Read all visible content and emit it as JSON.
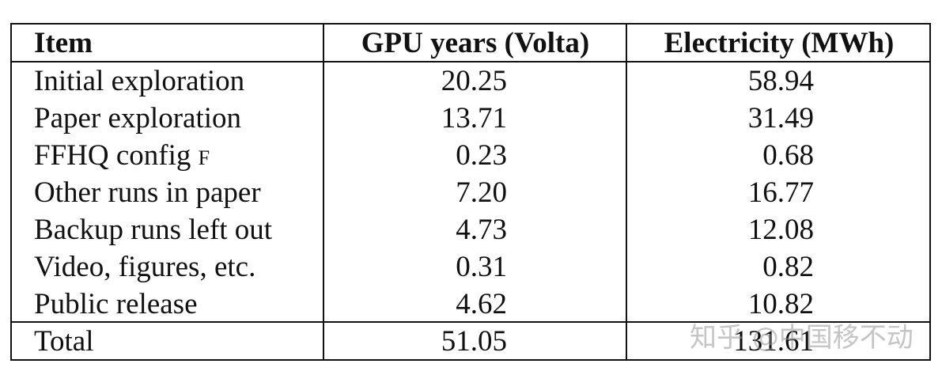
{
  "table": {
    "headers": [
      "Item",
      "GPU years (Volta)",
      "Electricity (MWh)"
    ],
    "rows": [
      {
        "item": "Initial exploration",
        "gpu": "20.25",
        "elec": "58.94"
      },
      {
        "item": "Paper exploration",
        "gpu": "13.71",
        "elec": "31.49"
      },
      {
        "item": "FFHQ config",
        "item_suffix": "F",
        "gpu": "0.23",
        "elec": "0.68"
      },
      {
        "item": "Other runs in paper",
        "gpu": "7.20",
        "elec": "16.77"
      },
      {
        "item": "Backup runs left out",
        "gpu": "4.73",
        "elec": "12.08"
      },
      {
        "item": "Video, figures, etc.",
        "gpu": "0.31",
        "elec": "0.82"
      },
      {
        "item": "Public release",
        "gpu": "4.62",
        "elec": "10.82"
      }
    ],
    "total": {
      "item": "Total",
      "gpu": "51.05",
      "elec": "131.61"
    }
  },
  "watermark": "知乎 @中国移不动"
}
